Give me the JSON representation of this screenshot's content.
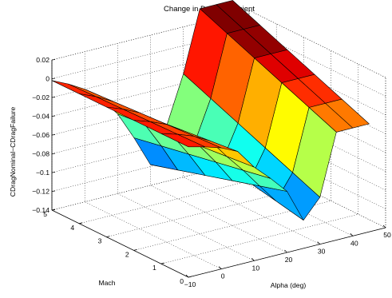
{
  "chart_data": {
    "type": "surface3d",
    "title": "Change in Drag Coefficient",
    "xlabel": "Alpha (deg)",
    "ylabel": "Mach",
    "zlabel": "CDragNominal−CDragFailure",
    "xlim": [
      -10,
      50
    ],
    "ylim": [
      0,
      5
    ],
    "zlim": [
      -0.14,
      0.02
    ],
    "x_ticks": [
      "−10",
      "0",
      "10",
      "20",
      "30",
      "40",
      "50"
    ],
    "y_ticks": [
      "0",
      "1",
      "2",
      "3",
      "4",
      "5"
    ],
    "z_ticks": [
      "−0.14",
      "−0.12",
      "−0.1",
      "−0.08",
      "−0.06",
      "−0.04",
      "−0.02",
      "0",
      "0.02"
    ],
    "colormap": "jet",
    "grid": true,
    "alpha_deg": [
      -10,
      -5,
      0,
      5,
      10,
      15,
      20,
      25,
      30,
      35,
      40,
      45
    ],
    "mach": [
      0,
      1,
      2,
      3,
      4,
      5
    ],
    "surface_profile_by_alpha": [
      -0.002,
      -0.01,
      -0.02,
      -0.035,
      -0.055,
      -0.085,
      -0.118,
      -0.095,
      -0.06,
      0.005,
      0.005,
      0.005
    ]
  }
}
